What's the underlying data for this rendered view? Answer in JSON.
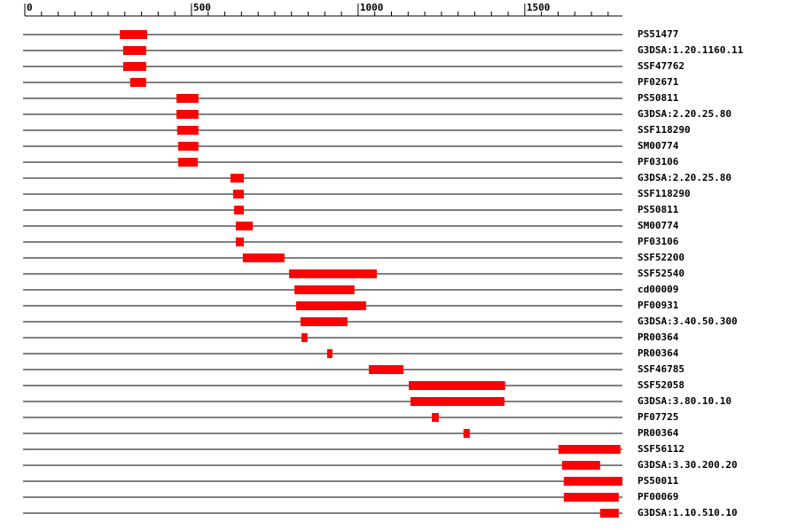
{
  "chart_data": {
    "type": "range",
    "color": "#ff0000",
    "xlim": [
      0,
      1793
    ],
    "xticks": [
      0,
      500,
      1000,
      1500
    ],
    "xminorticks": [
      50,
      100,
      150,
      200,
      250,
      300,
      350,
      400,
      450,
      550,
      600,
      650,
      700,
      750,
      800,
      850,
      900,
      950,
      1050,
      1100,
      1150,
      1200,
      1250,
      1300,
      1350,
      1400,
      1450,
      1550,
      1600,
      1650,
      1700,
      1750
    ],
    "categories": [
      "PS51477",
      "G3DSA:1.20.1160.11",
      "SSF47762",
      "PF02671",
      "PS50811",
      "G3DSA:2.20.25.80",
      "SSF118290",
      "SM00774",
      "PF03106",
      "G3DSA:2.20.25.80",
      "SSF118290",
      "PS50811",
      "SM00774",
      "PF03106",
      "SSF52200",
      "SSF52540",
      "cd00009",
      "PF00931",
      "G3DSA:3.40.50.300",
      "PR00364",
      "PR00364",
      "SSF46785",
      "SSF52058",
      "G3DSA:3.80.10.10",
      "PF07725",
      "PR00364",
      "SSF56112",
      "G3DSA:3.30.200.20",
      "PS50011",
      "PF00069",
      "G3DSA:1.10.510.10"
    ],
    "starts": [
      285,
      295,
      295,
      316,
      455,
      455,
      457,
      460,
      460,
      617,
      625,
      628,
      633,
      633,
      654,
      793,
      809,
      814,
      827,
      830,
      907,
      1032,
      1152,
      1157,
      1221,
      1316,
      1601,
      1612,
      1617,
      1617,
      1726
    ],
    "ends": [
      367,
      364,
      364,
      364,
      521,
      521,
      521,
      521,
      519,
      657,
      657,
      657,
      684,
      657,
      779,
      1056,
      989,
      1024,
      968,
      848,
      923,
      1136,
      1441,
      1439,
      1242,
      1335,
      1787,
      1726,
      1793,
      1782,
      1782
    ]
  }
}
